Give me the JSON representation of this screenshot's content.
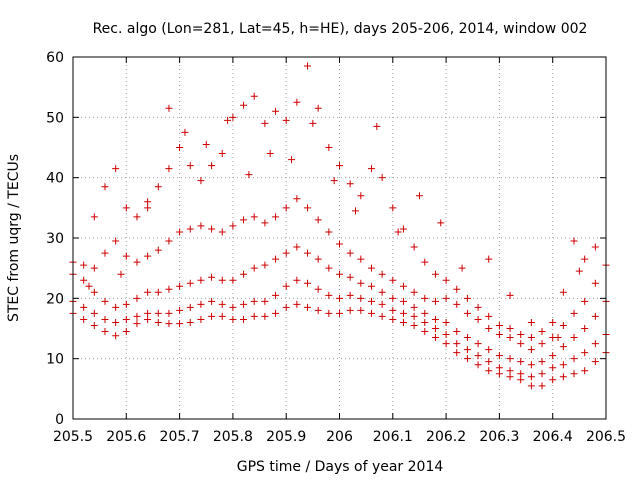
{
  "chart_data": {
    "type": "scatter",
    "title": "Rec. algo (Lon=281, Lat=45, h=HE), days 205-206, 2014, window 002",
    "xlabel": "GPS time / Days of year 2014",
    "ylabel": "STEC from uqrg / TECUs",
    "xlim": [
      205.5,
      206.5
    ],
    "ylim": [
      0,
      60
    ],
    "xticks": [
      "205.5",
      "205.6",
      "205.7",
      "205.8",
      "205.9",
      "206",
      "206.1",
      "206.2",
      "206.3",
      "206.4",
      "206.5"
    ],
    "yticks": [
      "0",
      "10",
      "20",
      "30",
      "40",
      "50",
      "60"
    ],
    "grid": true,
    "marker": "plus",
    "color": "#cc0000",
    "series": [
      {
        "x": [
          205.5,
          205.52,
          205.54,
          205.56,
          205.58,
          205.6,
          205.62,
          205.64,
          205.66,
          205.68,
          205.7,
          205.72,
          205.74,
          205.76,
          205.78,
          205.8,
          205.82,
          205.84,
          205.86,
          205.88,
          205.9,
          205.92,
          205.94,
          205.96,
          205.98,
          206.0,
          206.02,
          206.04,
          206.06,
          206.08,
          206.1,
          206.12,
          206.14,
          206.16,
          206.18,
          206.2,
          206.22,
          206.24,
          206.26,
          206.28,
          206.3,
          206.32,
          206.34,
          206.36,
          206.38,
          206.4,
          206.42,
          206.44,
          206.46,
          206.48,
          206.5
        ],
        "y": [
          17.5,
          16.5,
          15.5,
          14.5,
          13.8,
          14.5,
          15.8,
          16.5,
          16.0,
          15.8,
          15.8,
          16.0,
          16.5,
          17.0,
          17.0,
          16.5,
          16.5,
          17.0,
          17.0,
          17.5,
          18.5,
          19.0,
          18.5,
          18.0,
          17.5,
          17.5,
          18.0,
          18.0,
          17.5,
          17.0,
          16.5,
          16.0,
          15.5,
          14.5,
          13.5,
          12.5,
          11.0,
          10.0,
          9.0,
          8.0,
          7.5,
          7.0,
          6.5,
          5.5,
          5.5,
          6.5,
          7.0,
          7.5,
          8.0,
          9.5,
          11.0
        ]
      },
      {
        "x": [
          205.5,
          205.52,
          205.54,
          205.56,
          205.58,
          205.6,
          205.62,
          205.64,
          205.66,
          205.68,
          205.7,
          205.72,
          205.74,
          205.76,
          205.78,
          205.8,
          205.82,
          205.84,
          205.86,
          205.88,
          205.9,
          205.92,
          205.94,
          205.96,
          205.98,
          206.0,
          206.02,
          206.04,
          206.06,
          206.08,
          206.1,
          206.12,
          206.14,
          206.16,
          206.18,
          206.2,
          206.22,
          206.24,
          206.26,
          206.28,
          206.3,
          206.32,
          206.34,
          206.36,
          206.38,
          206.4,
          206.42,
          206.44,
          206.46,
          206.48,
          206.5
        ],
        "y": [
          19.5,
          18.5,
          17.5,
          16.5,
          16.0,
          16.5,
          17.0,
          17.5,
          17.5,
          17.5,
          18.0,
          18.5,
          19.0,
          19.5,
          19.0,
          18.5,
          19.0,
          19.5,
          19.5,
          20.5,
          22.0,
          23.0,
          22.5,
          21.5,
          20.5,
          20.0,
          20.5,
          20.0,
          19.5,
          19.0,
          18.0,
          17.5,
          17.0,
          16.0,
          15.0,
          14.0,
          12.5,
          11.5,
          10.5,
          9.5,
          8.5,
          8.0,
          7.5,
          7.0,
          7.5,
          8.5,
          9.0,
          10.0,
          11.0,
          12.5,
          14.0
        ]
      },
      {
        "x": [
          205.5,
          205.52,
          205.54,
          205.56,
          205.58,
          205.6,
          205.62,
          205.64,
          205.66,
          205.68,
          205.7,
          205.72,
          205.74,
          205.76,
          205.78,
          205.8,
          205.82,
          205.84,
          205.86,
          205.88,
          205.9,
          205.92,
          205.94,
          205.96,
          205.98,
          206.0,
          206.02,
          206.04,
          206.06,
          206.08,
          206.1,
          206.12,
          206.14,
          206.16,
          206.18,
          206.2,
          206.22,
          206.24,
          206.26,
          206.28,
          206.3,
          206.32,
          206.34,
          206.36,
          206.38,
          206.4,
          206.42,
          206.44,
          206.46,
          206.48,
          206.5
        ],
        "y": [
          24.0,
          23.0,
          21.0,
          19.5,
          18.5,
          19.0,
          20.0,
          21.0,
          21.0,
          21.5,
          22.0,
          22.5,
          23.0,
          23.5,
          23.0,
          23.0,
          24.0,
          25.0,
          25.5,
          26.5,
          27.5,
          28.5,
          27.5,
          26.5,
          25.0,
          24.0,
          23.5,
          22.5,
          22.0,
          21.0,
          20.0,
          19.5,
          18.5,
          17.5,
          16.5,
          16.0,
          14.5,
          13.5,
          12.5,
          11.5,
          10.5,
          10.0,
          9.5,
          9.0,
          9.5,
          10.5,
          12.0,
          13.5,
          15.0,
          17.0,
          19.5
        ]
      },
      {
        "x": [
          205.5,
          205.52,
          205.54,
          205.56,
          205.58,
          205.6,
          205.62,
          205.64,
          205.66,
          205.68,
          205.7,
          205.72,
          205.74,
          205.76,
          205.78,
          205.8,
          205.82,
          205.84,
          205.86,
          205.88,
          205.9,
          205.92,
          205.94,
          205.96,
          205.98,
          206.0,
          206.02,
          206.04,
          206.06,
          206.08,
          206.1,
          206.12,
          206.14,
          206.16,
          206.18,
          206.2,
          206.22,
          206.24,
          206.26,
          206.28,
          206.3,
          206.32,
          206.34,
          206.36,
          206.38,
          206.4,
          206.42,
          206.44,
          206.46,
          206.48,
          206.5
        ],
        "y": [
          26.0,
          25.5,
          25.0,
          27.5,
          29.5,
          27.0,
          26.0,
          27.0,
          28.0,
          29.5,
          31.0,
          31.5,
          32.0,
          31.5,
          31.0,
          32.0,
          33.0,
          33.5,
          32.5,
          33.5,
          35.0,
          36.5,
          35.0,
          33.0,
          31.0,
          29.0,
          27.5,
          26.5,
          25.0,
          24.0,
          23.0,
          22.0,
          21.0,
          20.0,
          19.5,
          20.0,
          19.0,
          17.5,
          16.5,
          15.0,
          14.0,
          13.5,
          12.5,
          11.5,
          12.5,
          13.5,
          15.5,
          17.5,
          19.5,
          22.5,
          25.5
        ]
      },
      {
        "x": [
          205.54,
          205.56,
          205.58,
          205.6,
          205.62,
          205.64,
          205.66,
          205.68,
          205.7,
          205.72,
          205.74,
          205.76,
          205.78,
          205.8,
          205.82,
          205.84,
          205.86,
          205.88,
          205.9,
          205.92,
          205.94,
          205.96,
          205.98,
          206.0,
          206.02,
          206.04,
          206.06,
          206.08,
          206.1,
          206.12,
          206.14,
          206.16,
          206.18,
          206.2,
          206.22,
          206.24,
          206.26,
          206.28,
          206.3,
          206.32,
          206.34,
          206.36,
          206.38,
          206.4,
          206.42,
          206.44,
          206.46,
          206.48
        ],
        "y": [
          33.5,
          38.5,
          41.5,
          35.0,
          33.5,
          36.0,
          38.5,
          41.5,
          45.0,
          42.0,
          39.5,
          42.0,
          44.0,
          50.0,
          52.0,
          53.5,
          49.0,
          51.0,
          49.5,
          52.5,
          58.5,
          51.5,
          45.0,
          42.0,
          39.0,
          37.0,
          41.5,
          40.0,
          35.0,
          31.5,
          28.5,
          26.0,
          24.0,
          23.0,
          21.5,
          20.0,
          18.5,
          17.0,
          15.5,
          15.0,
          14.0,
          13.5,
          14.5,
          16.0,
          21.0,
          29.5,
          26.5,
          28.5
        ]
      },
      {
        "x": [
          205.53,
          205.59,
          205.64,
          205.68,
          205.71,
          205.75,
          205.79,
          205.83,
          205.87,
          205.91,
          205.95,
          205.99,
          206.03,
          206.07,
          206.11,
          206.15,
          206.19,
          206.23,
          206.28,
          206.32,
          206.36,
          206.41,
          206.45
        ],
        "y": [
          22.0,
          24.0,
          35.0,
          51.5,
          47.5,
          45.5,
          49.5,
          40.5,
          44.0,
          43.0,
          49.0,
          39.5,
          34.5,
          48.5,
          31.0,
          37.0,
          32.5,
          25.0,
          26.5,
          20.5,
          16.0,
          13.5,
          24.5
        ]
      }
    ]
  }
}
